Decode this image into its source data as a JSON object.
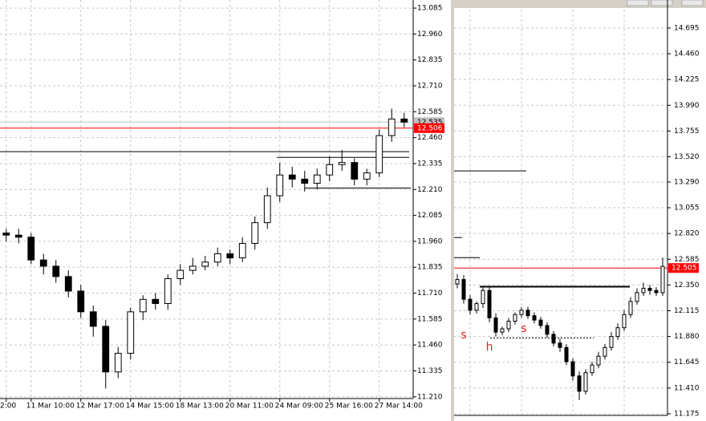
{
  "chart_data": [
    {
      "type": "candlestick",
      "categories": [
        "2:00",
        null,
        "11 Mar 10:00",
        null,
        null,
        null,
        "12 Mar 17:00",
        null,
        null,
        null,
        "14 Mar 15:00",
        null,
        null,
        null,
        "18 Mar 13:00",
        null,
        null,
        null,
        "20 Mar 11:00",
        null,
        null,
        null,
        "24 Mar 09:00",
        null,
        null,
        null,
        "25 Mar 16:00",
        null,
        null,
        null,
        "27 Mar 14:00",
        null,
        null
      ],
      "open": [
        12.0,
        11.99,
        11.98,
        11.87,
        11.84,
        11.79,
        11.72,
        11.62,
        11.55,
        11.33,
        11.42,
        11.62,
        11.68,
        11.66,
        11.78,
        11.82,
        11.84,
        11.86,
        11.9,
        11.88,
        11.95,
        12.05,
        12.18,
        12.28,
        12.26,
        12.24,
        12.28,
        12.33,
        12.34,
        12.26,
        12.29,
        12.47,
        12.55
      ],
      "high": [
        12.02,
        12.02,
        12.0,
        11.9,
        11.87,
        11.82,
        11.75,
        11.65,
        11.58,
        11.45,
        11.64,
        11.7,
        11.71,
        11.8,
        11.85,
        11.88,
        11.89,
        11.93,
        11.92,
        11.98,
        12.08,
        12.22,
        12.34,
        12.32,
        12.3,
        12.31,
        12.37,
        12.4,
        12.36,
        12.31,
        12.5,
        12.6,
        12.58
      ],
      "low": [
        11.96,
        11.95,
        11.85,
        11.8,
        11.76,
        11.69,
        11.59,
        11.5,
        11.25,
        11.3,
        11.39,
        11.58,
        11.63,
        11.63,
        11.75,
        11.8,
        11.82,
        11.84,
        11.85,
        11.86,
        11.92,
        12.02,
        12.15,
        12.22,
        12.2,
        12.21,
        12.25,
        12.3,
        12.23,
        12.23,
        12.27,
        12.44,
        12.51
      ],
      "close": [
        11.99,
        11.98,
        11.87,
        11.84,
        11.79,
        11.72,
        11.62,
        11.55,
        11.33,
        11.42,
        11.62,
        11.68,
        11.66,
        11.78,
        11.82,
        11.84,
        11.86,
        11.9,
        11.88,
        11.95,
        12.05,
        12.18,
        12.28,
        12.26,
        12.24,
        12.28,
        12.33,
        12.34,
        12.26,
        12.29,
        12.47,
        12.55,
        12.535
      ],
      "ylim": [
        11.19,
        13.124
      ],
      "yticks": [
        13.085,
        {
          "value": 12.96,
          "label": "12.960"
        },
        12.835,
        {
          "value": 12.71,
          "label": "12.710"
        },
        12.585,
        {
          "value": 12.46,
          "label": "12.460"
        },
        12.335,
        {
          "value": 12.21,
          "label": "12.210"
        },
        12.085,
        {
          "value": 11.96,
          "label": "11.960"
        },
        11.835,
        {
          "value": 11.71,
          "label": "11.710"
        },
        11.585,
        {
          "value": 11.46,
          "label": "11.460"
        },
        11.335,
        {
          "value": 11.21,
          "label": "11.210"
        }
      ],
      "grid": true,
      "hlines": [
        {
          "value": 12.535,
          "color": "#c0c0c0"
        },
        {
          "value": 12.506,
          "color": "#ff0000"
        },
        {
          "value": 12.3925,
          "color": "#000000"
        },
        {
          "value": 12.365,
          "color": "#000000"
        },
        {
          "value": 12.217,
          "color": "#000000"
        }
      ],
      "price_labels": [
        {
          "value": 12.535,
          "color": "#c0c0c0"
        },
        {
          "value": 12.506,
          "color": "#ff0000"
        }
      ]
    },
    {
      "type": "candlestick",
      "categories": [
        null,
        null,
        null,
        null,
        null,
        null,
        null,
        null,
        null,
        null,
        null,
        null,
        null,
        null,
        null,
        null,
        null,
        null,
        null,
        null,
        null,
        null,
        null,
        null,
        null,
        null,
        null,
        null,
        null,
        null,
        null,
        null,
        null
      ],
      "open": [
        12.36,
        12.4,
        12.22,
        12.12,
        12.18,
        12.3,
        12.05,
        11.92,
        11.95,
        12.02,
        12.08,
        12.12,
        12.07,
        12.03,
        11.98,
        11.9,
        11.82,
        11.78,
        11.65,
        11.52,
        11.38,
        11.55,
        11.62,
        11.7,
        11.78,
        11.88,
        11.96,
        12.08,
        12.2,
        12.28,
        12.32,
        12.3,
        12.28
      ],
      "high": [
        12.45,
        12.44,
        12.26,
        12.2,
        12.33,
        12.34,
        12.09,
        11.97,
        12.05,
        12.1,
        12.15,
        12.15,
        12.1,
        12.06,
        12.01,
        11.93,
        11.86,
        11.81,
        11.68,
        11.56,
        11.58,
        11.65,
        11.74,
        11.81,
        11.92,
        12.0,
        12.12,
        12.24,
        12.32,
        12.37,
        12.35,
        12.33,
        12.6
      ],
      "low": [
        12.32,
        12.18,
        12.08,
        12.09,
        12.14,
        12.01,
        11.88,
        11.89,
        11.92,
        11.99,
        12.05,
        12.04,
        12.0,
        11.95,
        11.87,
        11.79,
        11.74,
        11.62,
        11.48,
        11.3,
        11.35,
        11.52,
        11.59,
        11.67,
        11.75,
        11.85,
        11.93,
        12.05,
        12.17,
        12.25,
        12.26,
        12.25,
        12.25
      ],
      "close": [
        12.4,
        12.22,
        12.12,
        12.18,
        12.3,
        12.05,
        11.92,
        11.95,
        12.02,
        12.08,
        12.12,
        12.07,
        12.03,
        11.98,
        11.9,
        11.82,
        11.78,
        11.65,
        11.52,
        11.38,
        11.55,
        11.62,
        11.7,
        11.78,
        11.88,
        11.96,
        12.08,
        12.2,
        12.28,
        12.32,
        12.3,
        12.28,
        12.52
      ],
      "ylim": [
        11.16,
        14.863
      ],
      "yticks": [
        14.695,
        {
          "value": 14.46,
          "label": "14.460"
        },
        14.225,
        {
          "value": 13.99,
          "label": "13.990"
        },
        13.755,
        {
          "value": 13.52,
          "label": "13.520"
        },
        {
          "value": 13.29,
          "label": "13.290"
        },
        13.055,
        {
          "value": 12.82,
          "label": "12.820"
        },
        12.585,
        {
          "value": 12.35,
          "label": "12.350"
        },
        12.115,
        {
          "value": 11.88,
          "label": "11.880"
        },
        11.645,
        {
          "value": 11.41,
          "label": "11.410"
        },
        11.175
      ],
      "grid": true,
      "hlines": [
        {
          "value": 12.505,
          "color": "#ff0000"
        },
        {
          "value": 13.391,
          "color": "#000000"
        },
        {
          "value": 12.783,
          "color": "#000000"
        },
        {
          "value": 12.6,
          "color": "#000000"
        },
        {
          "value": 12.335,
          "color": "#000000"
        },
        {
          "value": 11.866,
          "color": "#000000"
        }
      ],
      "price_labels": [
        {
          "value": 12.505,
          "color": "#ff0000"
        }
      ],
      "annotations": [
        "s",
        "h",
        "s"
      ]
    }
  ]
}
